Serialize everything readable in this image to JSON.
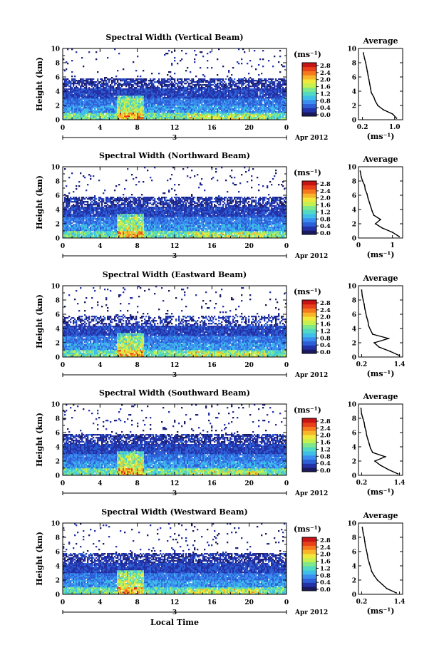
{
  "figure": {
    "xlabel": "Local Time"
  },
  "colorbar": {
    "unit": "(ms⁻¹)",
    "ticks": [
      "0.0",
      "0.4",
      "0.8",
      "1.2",
      "1.6",
      "2.0",
      "2.4",
      "2.8"
    ],
    "colors": [
      "#1a1a5e",
      "#2432a8",
      "#2d5fd6",
      "#3b8ef0",
      "#3fbfe8",
      "#52d9c4",
      "#7fe88a",
      "#c4f050",
      "#f0e83a",
      "#f7b52a",
      "#f57a1e",
      "#e8401a",
      "#c81414"
    ]
  },
  "chart_data": [
    {
      "type": "heatmap",
      "title": "Spectral Width (Vertical Beam)",
      "ylabel": "Height (km)",
      "yticks": [
        "0",
        "2",
        "4",
        "6",
        "8",
        "10"
      ],
      "ylim": [
        0,
        10
      ],
      "xticks": [
        "0",
        "4",
        "8",
        "12",
        "16",
        "20",
        "0"
      ],
      "xlim": [
        0,
        24
      ],
      "date_marker": "3",
      "date_label": "Apr 2012",
      "colorbar_unit": "(ms⁻¹)",
      "colorbar_ticks": [
        "0.0",
        "0.4",
        "0.8",
        "1.2",
        "1.6",
        "2.0",
        "2.4",
        "2.8"
      ],
      "profile": {
        "title": "Average",
        "xlabel": "(ms⁻¹)",
        "xticks": [
          "0.2",
          "1.0"
        ],
        "xlim": [
          0.1,
          1.2
        ],
        "yticks": [
          "0",
          "2",
          "4",
          "6",
          "8",
          "10"
        ],
        "heights": [
          0.2,
          0.8,
          1.4,
          2.0,
          2.6,
          3.2,
          3.8,
          4.4,
          5.0,
          5.6,
          6.2,
          6.8,
          7.4,
          8.0,
          8.6,
          9.4
        ],
        "values": [
          1.05,
          0.95,
          0.72,
          0.58,
          0.52,
          0.48,
          0.42,
          0.4,
          0.38,
          0.36,
          0.34,
          0.32,
          0.3,
          0.28,
          0.25,
          0.22
        ]
      }
    },
    {
      "type": "heatmap",
      "title": "Spectral Width (Northward Beam)",
      "ylabel": "Height (km)",
      "yticks": [
        "0",
        "2",
        "4",
        "6",
        "8",
        "10"
      ],
      "ylim": [
        0,
        10
      ],
      "xticks": [
        "0",
        "4",
        "8",
        "12",
        "16",
        "20",
        "0"
      ],
      "xlim": [
        0,
        24
      ],
      "date_marker": "3",
      "date_label": "Apr 2012",
      "colorbar_unit": "(ms⁻¹)",
      "colorbar_ticks": [
        "0.0",
        "0.4",
        "0.8",
        "1.2",
        "1.6",
        "2.0",
        "2.4",
        "2.8"
      ],
      "profile": {
        "title": "Average",
        "xlabel": "(ms⁻¹)",
        "xticks": [
          "0",
          "1"
        ],
        "xlim": [
          0,
          1.3
        ],
        "yticks": [
          "0",
          "2",
          "4",
          "6",
          "8",
          "10"
        ],
        "heights": [
          0.2,
          0.8,
          1.4,
          2.0,
          2.6,
          3.2,
          3.8,
          4.4,
          5.0,
          5.6,
          6.2,
          6.8,
          7.4,
          8.0,
          8.6,
          9.4
        ],
        "values": [
          1.2,
          1.0,
          0.7,
          0.5,
          0.65,
          0.45,
          0.4,
          0.36,
          0.32,
          0.28,
          0.25,
          0.2,
          0.18,
          0.12,
          0.08,
          0.05
        ]
      }
    },
    {
      "type": "heatmap",
      "title": "Spectral Width (Eastward Beam)",
      "ylabel": "Height (km)",
      "yticks": [
        "0",
        "2",
        "4",
        "6",
        "8",
        "10"
      ],
      "ylim": [
        0,
        10
      ],
      "xticks": [
        "0",
        "4",
        "8",
        "12",
        "16",
        "20",
        "0"
      ],
      "xlim": [
        0,
        24
      ],
      "date_marker": "3",
      "date_label": "Apr 2012",
      "colorbar_unit": "(ms⁻¹)",
      "colorbar_ticks": [
        "0.0",
        "0.4",
        "0.8",
        "1.2",
        "1.6",
        "2.0",
        "2.4",
        "2.8"
      ],
      "profile": {
        "title": "Average",
        "xlabel": "(ms⁻¹)",
        "xticks": [
          "0.2",
          "1.4"
        ],
        "xlim": [
          0.1,
          1.5
        ],
        "yticks": [
          "0",
          "2",
          "4",
          "6",
          "8",
          "10"
        ],
        "heights": [
          0.2,
          0.8,
          1.4,
          2.0,
          2.6,
          3.2,
          3.8,
          4.4,
          5.0,
          5.6,
          6.2,
          6.8,
          7.4,
          8.0,
          8.6,
          9.4
        ],
        "values": [
          1.4,
          1.1,
          0.75,
          0.6,
          1.05,
          0.55,
          0.48,
          0.42,
          0.4,
          0.36,
          0.33,
          0.3,
          0.28,
          0.25,
          0.22,
          0.2
        ]
      }
    },
    {
      "type": "heatmap",
      "title": "Spectral Width (Southward Beam)",
      "ylabel": "Height (km)",
      "yticks": [
        "0",
        "2",
        "4",
        "6",
        "8",
        "10"
      ],
      "ylim": [
        0,
        10
      ],
      "xticks": [
        "0",
        "4",
        "8",
        "12",
        "16",
        "20",
        "0"
      ],
      "xlim": [
        0,
        24
      ],
      "date_marker": "3",
      "date_label": "Apr 2012",
      "colorbar_unit": "(ms⁻¹)",
      "colorbar_ticks": [
        "0.0",
        "0.4",
        "0.8",
        "1.2",
        "1.6",
        "2.0",
        "2.4",
        "2.8"
      ],
      "profile": {
        "title": "Average",
        "xlabel": "(ms⁻¹)",
        "xticks": [
          "0.2",
          "1.4"
        ],
        "xlim": [
          0.1,
          1.5
        ],
        "yticks": [
          "0",
          "2",
          "4",
          "6",
          "8",
          "10"
        ],
        "heights": [
          0.2,
          0.8,
          1.4,
          2.0,
          2.6,
          3.2,
          3.8,
          4.4,
          5.0,
          5.6,
          6.2,
          6.8,
          7.4,
          8.0,
          8.6,
          9.4
        ],
        "values": [
          1.35,
          1.05,
          0.8,
          0.62,
          0.95,
          0.55,
          0.48,
          0.44,
          0.4,
          0.36,
          0.34,
          0.3,
          0.28,
          0.24,
          0.2,
          0.18
        ]
      }
    },
    {
      "type": "heatmap",
      "title": "Spectral Width (Westward Beam)",
      "ylabel": "Height (km)",
      "yticks": [
        "0",
        "2",
        "4",
        "6",
        "8",
        "10"
      ],
      "ylim": [
        0,
        10
      ],
      "xticks": [
        "0",
        "4",
        "8",
        "12",
        "16",
        "20",
        "0"
      ],
      "xlim": [
        0,
        24
      ],
      "date_marker": "3",
      "date_label": "Apr 2012",
      "colorbar_unit": "(ms⁻¹)",
      "colorbar_ticks": [
        "0.0",
        "0.4",
        "0.8",
        "1.2",
        "1.6",
        "2.0",
        "2.4",
        "2.8"
      ],
      "profile": {
        "title": "Average",
        "xlabel": "(ms⁻¹)",
        "xticks": [
          "0.2",
          "1.4"
        ],
        "xlim": [
          0.1,
          1.5
        ],
        "yticks": [
          "0",
          "2",
          "4",
          "6",
          "8",
          "10"
        ],
        "heights": [
          0.2,
          0.8,
          1.4,
          2.0,
          2.6,
          3.2,
          3.8,
          4.4,
          5.0,
          5.6,
          6.2,
          6.8,
          7.4,
          8.0,
          8.6,
          9.4
        ],
        "values": [
          1.3,
          1.0,
          0.85,
          0.7,
          0.6,
          0.52,
          0.48,
          0.44,
          0.4,
          0.38,
          0.35,
          0.32,
          0.3,
          0.28,
          0.25,
          0.22
        ]
      }
    }
  ]
}
